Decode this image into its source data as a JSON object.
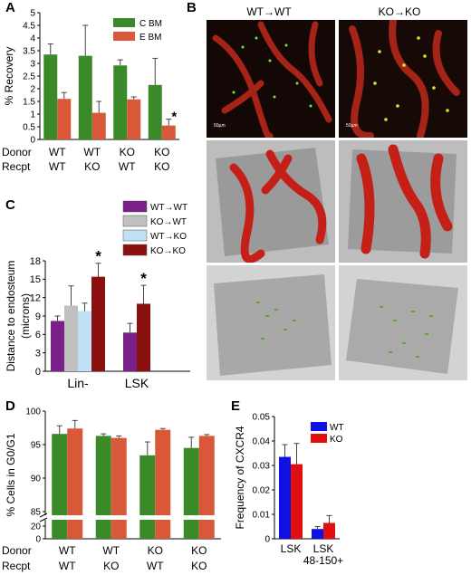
{
  "panels": {
    "a": "A",
    "b": "B",
    "c": "C",
    "d": "D",
    "e": "E"
  },
  "chart_data": [
    {
      "id": "A",
      "type": "bar",
      "ylabel": "% Recovery",
      "ylim": [
        0,
        5
      ],
      "yticks": [
        "0",
        "0.5",
        "1",
        "1.5",
        "2",
        "2.5",
        "3",
        "3.5",
        "4",
        "4.5",
        "5"
      ],
      "categories_rows": {
        "row_labels": [
          "Donor",
          "Recpt"
        ],
        "donor": [
          "WT",
          "WT",
          "KO",
          "KO"
        ],
        "recpt": [
          "WT",
          "KO",
          "WT",
          "KO"
        ]
      },
      "series": [
        {
          "name": "C BM",
          "color": "#3a8a2a",
          "values": [
            3.35,
            3.3,
            2.92,
            2.15
          ],
          "errors": [
            0.42,
            1.2,
            0.22,
            1.05
          ]
        },
        {
          "name": "E BM",
          "color": "#d9583a",
          "values": [
            1.6,
            1.05,
            1.58,
            0.55
          ],
          "errors": [
            0.25,
            0.45,
            0.1,
            0.25
          ]
        }
      ],
      "significance": [
        {
          "group": 3,
          "series": 1,
          "text": "*"
        }
      ],
      "legend": "top-right",
      "grid": false
    },
    {
      "id": "C",
      "type": "bar",
      "ylabel": "Distance to endosteum (microns)",
      "ylim": [
        0,
        18
      ],
      "yticks": [
        "0",
        "3",
        "6",
        "9",
        "12",
        "15",
        "18"
      ],
      "categories": [
        "Lin-",
        "LSK"
      ],
      "series": [
        {
          "name": "WT→WT",
          "color": "#7a1f8a",
          "values": [
            8.2,
            6.3
          ],
          "errors": [
            0.8,
            1.5
          ]
        },
        {
          "name": "KO→WT",
          "color": "#c0c0c0",
          "values": [
            10.7,
            null
          ],
          "errors": [
            3.2,
            null
          ]
        },
        {
          "name": "WT→KO",
          "color": "#bfe0f5",
          "values": [
            9.8,
            null
          ],
          "errors": [
            1.3,
            null
          ]
        },
        {
          "name": "KO→KO",
          "color": "#8a1010",
          "values": [
            15.4,
            11.0
          ],
          "errors": [
            2.2,
            3.0
          ]
        }
      ],
      "significance": [
        {
          "category": 0,
          "series": 3,
          "text": "*"
        },
        {
          "category": 1,
          "series": 3,
          "text": "*"
        }
      ],
      "legend": "top-right",
      "grid": false
    },
    {
      "id": "D",
      "type": "bar",
      "ylabel": "% Cells in G0/G1",
      "ylim": [
        85,
        100
      ],
      "yticks_upper": [
        "85",
        "90",
        "95",
        "100"
      ],
      "yticks_lower": [
        "0",
        "20"
      ],
      "axis_break": true,
      "categories_rows": {
        "row_labels": [
          "Donor",
          "Recpt"
        ],
        "donor": [
          "WT",
          "WT",
          "KO",
          "KO"
        ],
        "recpt": [
          "WT",
          "KO",
          "WT",
          "KO"
        ]
      },
      "series": [
        {
          "name": "green",
          "color": "#3a8a2a",
          "values": [
            96.6,
            96.3,
            93.4,
            94.5
          ],
          "errors": [
            1.2,
            0.3,
            2.0,
            1.6
          ]
        },
        {
          "name": "orange",
          "color": "#d9583a",
          "values": [
            97.4,
            96.0,
            97.2,
            96.3
          ],
          "errors": [
            1.2,
            0.3,
            0.2,
            0.2
          ]
        }
      ],
      "grid": false
    },
    {
      "id": "E",
      "type": "bar",
      "ylabel": "Frequency of CXCR4",
      "ylim": [
        0,
        0.05
      ],
      "yticks": [
        "0",
        "0.01",
        "0.02",
        "0.03",
        "0.04",
        "0.05"
      ],
      "categories": [
        "LSK",
        "LSK 48-150+"
      ],
      "category_lines": [
        [
          "LSK"
        ],
        [
          "LSK",
          "48-150+"
        ]
      ],
      "series": [
        {
          "name": "WT",
          "color": "#1010e0",
          "values": [
            0.0335,
            0.004
          ],
          "errors": [
            0.005,
            0.001
          ]
        },
        {
          "name": "KO",
          "color": "#e01010",
          "values": [
            0.0305,
            0.0065
          ],
          "errors": [
            0.0085,
            0.003
          ]
        }
      ],
      "legend": "top-right",
      "grid": false
    }
  ],
  "panel_b": {
    "col_titles": [
      "WT→WT",
      "KO→KO"
    ],
    "scale_bar": "50µm"
  }
}
